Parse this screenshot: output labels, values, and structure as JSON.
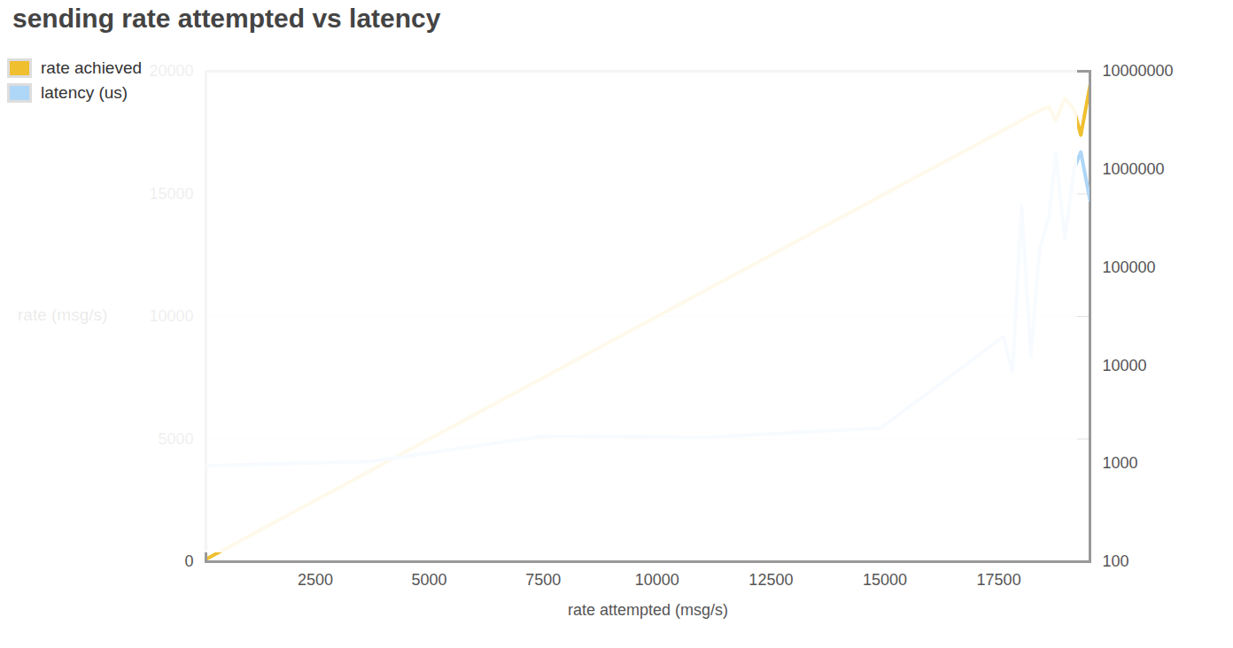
{
  "chart_data": {
    "type": "line",
    "title": "sending rate attempted vs latency",
    "x_label": "rate attempted (msg/s)",
    "y_label": "rate (msg/s)",
    "x": [
      100,
      3700,
      7500,
      11100,
      14900,
      16700,
      17600,
      17800,
      18000,
      18200,
      18400,
      18600,
      18750,
      18950,
      19150,
      19300,
      19500
    ],
    "series": [
      {
        "name": "rate achieved",
        "color": "#efbf30",
        "values": [
          100,
          3700,
          7500,
          11100,
          14900,
          16700,
          17600,
          17800,
          18000,
          18200,
          18400,
          18550,
          18000,
          18900,
          18450,
          17400,
          19400
        ]
      },
      {
        "name": "latency (us)",
        "color": "#aed6f7",
        "axis": "y2",
        "values": [
          950,
          1050,
          1900,
          1850,
          2300,
          9600,
          19800,
          8600,
          427000,
          12500,
          158000,
          325000,
          1450000,
          195000,
          1000000,
          1500000,
          490000
        ]
      }
    ],
    "xlim": [
      100,
      19500
    ],
    "xticks": [
      2500,
      5000,
      7500,
      10000,
      12500,
      15000,
      17500
    ],
    "ylim": [
      0,
      20000
    ],
    "yticks": [
      0,
      5000,
      10000,
      15000,
      20000
    ],
    "y2lim": [
      100,
      10000000
    ],
    "y2ticks": [
      100,
      1000,
      10000,
      100000,
      1000000,
      10000000
    ],
    "log": "y2",
    "grid": true,
    "legend": "bottom-right"
  }
}
